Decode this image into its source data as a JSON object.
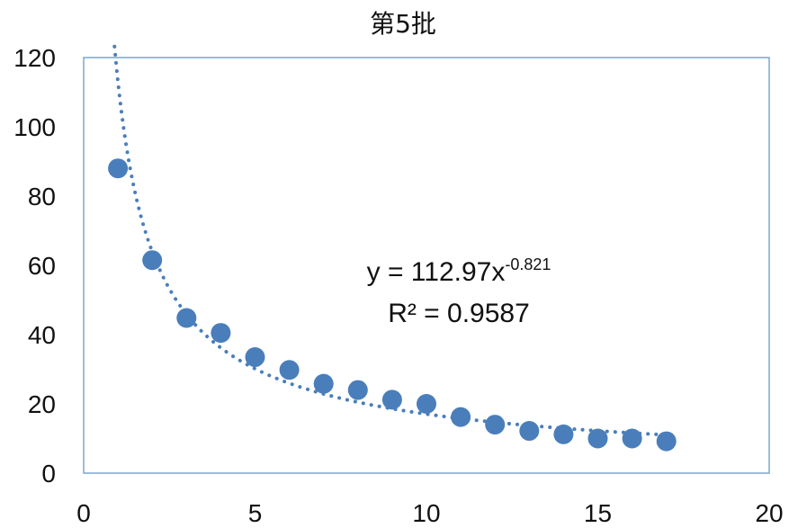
{
  "chart_data": {
    "type": "scatter",
    "title": "第5批",
    "xlabel": "",
    "ylabel": "",
    "xlim": [
      0,
      20
    ],
    "ylim": [
      0,
      120
    ],
    "xticks": [
      0,
      5,
      10,
      15,
      20
    ],
    "yticks": [
      0,
      20,
      40,
      60,
      80,
      100,
      120
    ],
    "grid": false,
    "series": [
      {
        "x": [
          1,
          2,
          3,
          4,
          5,
          6,
          7,
          8,
          9,
          10,
          11,
          12,
          13,
          14,
          15,
          16,
          17
        ],
        "y": [
          88,
          61.5,
          44.8,
          40.5,
          33.5,
          29.8,
          25.8,
          24.0,
          21.2,
          20.0,
          16.2,
          14.0,
          12.2,
          11.2,
          10.0,
          10.0,
          9.2
        ]
      }
    ],
    "trendline": {
      "type": "power",
      "a": 112.97,
      "b": -0.821,
      "x_range": [
        0.9,
        17
      ]
    },
    "equation": {
      "prefix": "y = 112.97x",
      "exponent": "-0.821",
      "r2": "R² = 0.9587"
    },
    "colors": {
      "marker": "#4a7ebb",
      "trendline": "#4a7ebb",
      "plot_border": "#7aa6cf"
    }
  }
}
